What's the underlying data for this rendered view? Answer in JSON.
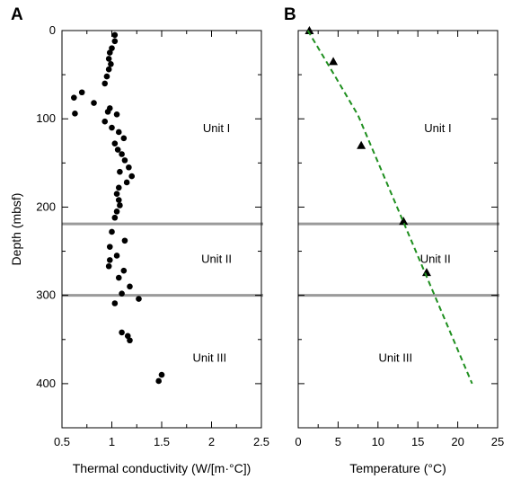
{
  "chart_data": [
    {
      "panel": "A",
      "type": "scatter",
      "xlabel": "Thermal conductivity (W/[m·°C])",
      "ylabel": "Depth (mbsf)",
      "xlim": [
        0.5,
        2.5
      ],
      "ylim": [
        450,
        0
      ],
      "x_ticks": [
        "0.5",
        "1",
        "1.5",
        "2",
        "2.5"
      ],
      "y_ticks": [
        "0",
        "100",
        "200",
        "300",
        "400"
      ],
      "series": [
        {
          "marker": "circle",
          "color": "#000000",
          "points": [
            [
              1.03,
              5
            ],
            [
              1.03,
              12
            ],
            [
              1.0,
              20
            ],
            [
              0.98,
              25
            ],
            [
              0.97,
              32
            ],
            [
              0.99,
              38
            ],
            [
              0.97,
              44
            ],
            [
              0.95,
              52
            ],
            [
              0.93,
              60
            ],
            [
              0.7,
              70
            ],
            [
              0.62,
              76
            ],
            [
              0.82,
              82
            ],
            [
              0.98,
              88
            ],
            [
              0.96,
              92
            ],
            [
              0.63,
              94
            ],
            [
              1.05,
              95
            ],
            [
              0.93,
              103
            ],
            [
              1.0,
              110
            ],
            [
              1.07,
              115
            ],
            [
              1.12,
              122
            ],
            [
              1.03,
              128
            ],
            [
              1.06,
              135
            ],
            [
              1.1,
              140
            ],
            [
              1.13,
              147
            ],
            [
              1.17,
              155
            ],
            [
              1.08,
              160
            ],
            [
              1.2,
              165
            ],
            [
              1.15,
              172
            ],
            [
              1.07,
              178
            ],
            [
              1.05,
              185
            ],
            [
              1.07,
              192
            ],
            [
              1.08,
              198
            ],
            [
              1.05,
              205
            ],
            [
              1.03,
              212
            ],
            [
              1.0,
              228
            ],
            [
              1.13,
              238
            ],
            [
              0.98,
              245
            ],
            [
              1.05,
              255
            ],
            [
              0.98,
              260
            ],
            [
              0.97,
              267
            ],
            [
              1.12,
              272
            ],
            [
              1.07,
              280
            ],
            [
              1.18,
              290
            ],
            [
              1.1,
              298
            ],
            [
              1.27,
              304
            ],
            [
              1.03,
              309
            ],
            [
              1.1,
              342
            ],
            [
              1.16,
              346
            ],
            [
              1.18,
              351
            ],
            [
              1.5,
              390
            ],
            [
              1.47,
              397
            ]
          ]
        }
      ],
      "boundaries": [
        219,
        300
      ],
      "unit_labels": [
        {
          "text": "Unit I",
          "x": 2.05,
          "y": 115
        },
        {
          "text": "Unit II",
          "x": 2.05,
          "y": 263
        },
        {
          "text": "Unit III",
          "x": 1.98,
          "y": 375
        }
      ],
      "grid": false,
      "boundary_color": "#9a9a9a"
    },
    {
      "panel": "B",
      "type": "scatter",
      "xlabel": "Temperature (°C)",
      "ylabel": "",
      "xlim": [
        0,
        25
      ],
      "ylim": [
        450,
        0
      ],
      "x_ticks": [
        "0",
        "5",
        "10",
        "15",
        "20",
        "25"
      ],
      "y_ticks": [
        "0",
        "100",
        "200",
        "300",
        "400"
      ],
      "series": [
        {
          "marker": "triangle",
          "color": "#000000",
          "points": [
            [
              1.4,
              0
            ],
            [
              4.4,
              35
            ],
            [
              7.9,
              130
            ],
            [
              13.2,
              216
            ],
            [
              16.1,
              274
            ]
          ]
        },
        {
          "marker": "line",
          "style": "dashed",
          "color": "#1f8f1f",
          "points": [
            [
              1.2,
              0
            ],
            [
              4.5,
              50
            ],
            [
              7.5,
              96
            ],
            [
              21.8,
              400
            ]
          ]
        }
      ],
      "boundaries": [
        219,
        300
      ],
      "unit_labels": [
        {
          "text": "Unit I",
          "x": 17.5,
          "y": 115
        },
        {
          "text": "Unit II",
          "x": 17.2,
          "y": 263
        },
        {
          "text": "Unit III",
          "x": 12.2,
          "y": 375
        }
      ],
      "grid": false,
      "boundary_color": "#9a9a9a"
    }
  ]
}
